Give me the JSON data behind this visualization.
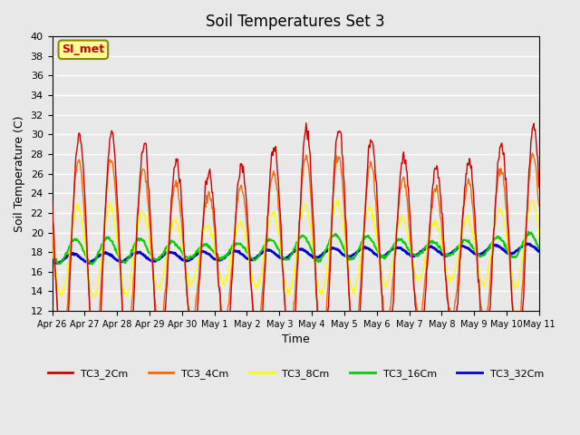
{
  "title": "Soil Temperatures Set 3",
  "xlabel": "Time",
  "ylabel": "Soil Temperature (C)",
  "ylim": [
    12,
    40
  ],
  "yticks": [
    12,
    14,
    16,
    18,
    20,
    22,
    24,
    26,
    28,
    30,
    32,
    34,
    36,
    38,
    40
  ],
  "background_color": "#e8e8e8",
  "plot_bg_color": "#e8e8e8",
  "grid_color": "#ffffff",
  "series_colors": {
    "TC3_2Cm": "#cc0000",
    "TC3_4Cm": "#ff6600",
    "TC3_8Cm": "#ffff00",
    "TC3_16Cm": "#00cc00",
    "TC3_32Cm": "#0000cc"
  },
  "annotation_label": "SI_met",
  "annotation_color": "#cc0000",
  "annotation_bg": "#ffff99",
  "tick_labels": [
    "Apr 26",
    "Apr 27",
    "Apr 28",
    "Apr 29",
    "Apr 30",
    "May 1",
    "May 2",
    "May 3",
    "May 4",
    "May 5",
    "May 6",
    "May 7",
    "May 8",
    "May 9",
    "May 10",
    "May 11"
  ],
  "n_days": 15,
  "points_per_day": 48
}
